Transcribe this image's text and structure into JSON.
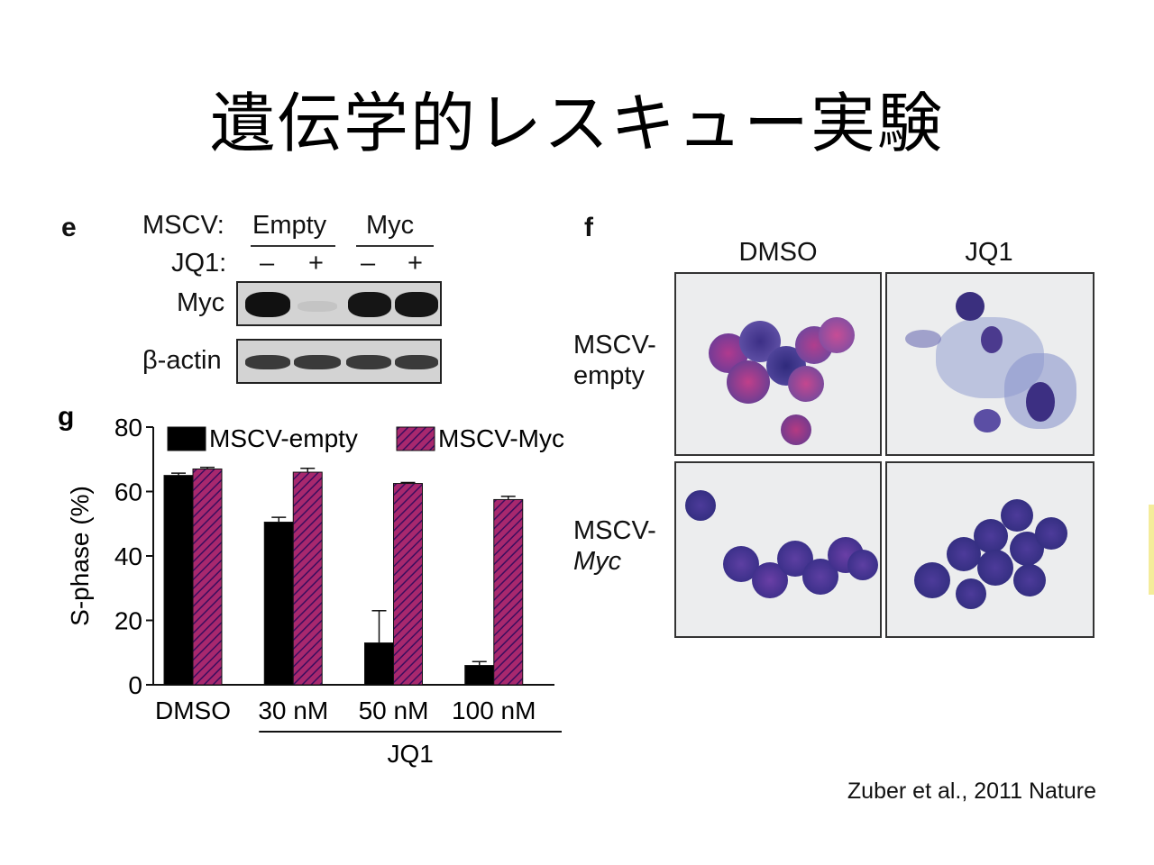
{
  "slide": {
    "title": "遺伝学的レスキュー実験",
    "citation": "Zuber et al., 2011 Nature"
  },
  "panel_e": {
    "letter": "e",
    "mscv_label": "MSCV:",
    "group_empty": "Empty",
    "group_myc": "Myc",
    "jq1_label": "JQ1:",
    "treatments": [
      "–",
      "+",
      "–",
      "+"
    ],
    "row_myc": "Myc",
    "row_actin": "β-actin",
    "myc_band_intensity": [
      1.0,
      0.1,
      0.95,
      0.95
    ],
    "actin_band_intensity": [
      0.8,
      0.8,
      0.8,
      0.8
    ]
  },
  "panel_f": {
    "letter": "f",
    "col_dmso": "DMSO",
    "col_jq1": "JQ1",
    "row1_line1": "MSCV-",
    "row1_line2": "empty",
    "row2_line1": "MSCV-",
    "row2_line2": "Myc"
  },
  "chart_data": {
    "type": "bar",
    "panel_letter": "g",
    "categories": [
      "DMSO",
      "30 nM",
      "50 nM",
      "100 nM"
    ],
    "group_label": "JQ1",
    "ylabel": "S-phase (%)",
    "ylim": [
      0,
      80
    ],
    "yticks": [
      "0",
      "20",
      "40",
      "60",
      "80"
    ],
    "legend_placement": "top",
    "series": [
      {
        "name": "MSCV-empty",
        "values": [
          65,
          50.5,
          13,
          6
        ],
        "errors": [
          0.7,
          1.5,
          10,
          1.2
        ],
        "color": "#000000"
      },
      {
        "name": "MSCV-Myc",
        "values": [
          67,
          66,
          62.5,
          57.5
        ],
        "errors": [
          0.5,
          1.2,
          0.3,
          1.0
        ],
        "color": "#a8286e"
      }
    ]
  }
}
